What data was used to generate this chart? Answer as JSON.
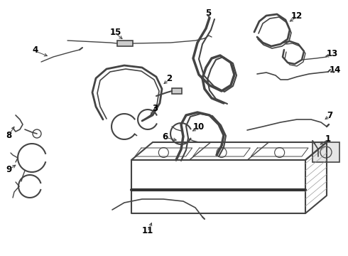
{
  "bg_color": "#ffffff",
  "line_color": "#444444",
  "label_color": "#000000",
  "figsize": [
    4.9,
    3.6
  ],
  "dpi": 100,
  "xlim": [
    0,
    490
  ],
  "ylim": [
    0,
    360
  ]
}
